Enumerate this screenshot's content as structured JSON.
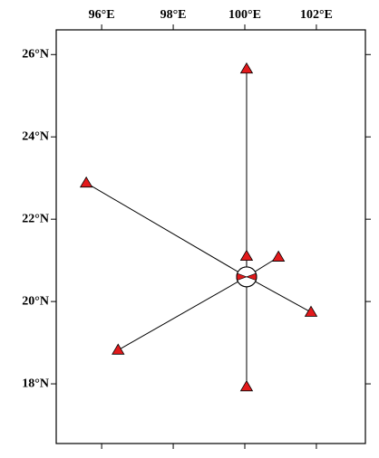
{
  "chart_data": {
    "type": "station-map",
    "xlim": [
      94.73,
      103.37
    ],
    "ylim": [
      16.55,
      26.6
    ],
    "xticks": [
      {
        "value": 96,
        "label": "96°E"
      },
      {
        "value": 98,
        "label": "98°E"
      },
      {
        "value": 100,
        "label": "100°E"
      },
      {
        "value": 102,
        "label": "102°E"
      }
    ],
    "yticks": [
      {
        "value": 18,
        "label": "18°N"
      },
      {
        "value": 20,
        "label": "20°N"
      },
      {
        "value": 22,
        "label": "22°N"
      },
      {
        "value": 24,
        "label": "24°N"
      },
      {
        "value": 26,
        "label": "26°N"
      }
    ],
    "stations": {
      "color": "#e31a1c",
      "x": [
        100.05,
        95.57,
        100.05,
        100.94,
        101.85,
        96.46,
        100.05
      ],
      "y": [
        25.65,
        22.88,
        21.1,
        21.08,
        19.74,
        18.82,
        17.93
      ]
    },
    "epicenter": {
      "x": 100.05,
      "y": 20.6,
      "color": "#e31a1c"
    }
  }
}
